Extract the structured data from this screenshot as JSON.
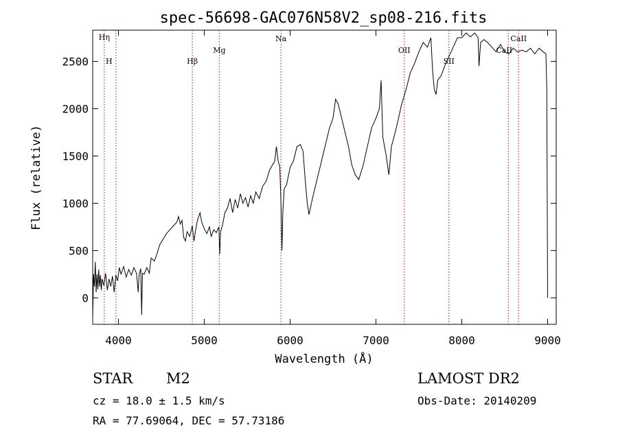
{
  "chart_data": {
    "type": "line",
    "title": "spec-56698-GAC076N58V2_sp08-216.fits",
    "xlabel": "Wavelength (Å)",
    "ylabel": "Flux (relative)",
    "xlim": [
      3700,
      9100
    ],
    "ylim": [
      -280,
      2830
    ],
    "xticks": [
      4000,
      5000,
      6000,
      7000,
      8000,
      9000
    ],
    "yticks": [
      0,
      500,
      1000,
      1500,
      2000,
      2500
    ],
    "series": [
      {
        "points": [
          [
            3700,
            -200
          ],
          [
            3710,
            250
          ],
          [
            3720,
            120
          ],
          [
            3730,
            380
          ],
          [
            3740,
            60
          ],
          [
            3750,
            250
          ],
          [
            3760,
            90
          ],
          [
            3770,
            300
          ],
          [
            3780,
            120
          ],
          [
            3790,
            240
          ],
          [
            3800,
            80
          ],
          [
            3810,
            200
          ],
          [
            3830,
            130
          ],
          [
            3850,
            260
          ],
          [
            3870,
            80
          ],
          [
            3890,
            200
          ],
          [
            3910,
            120
          ],
          [
            3930,
            230
          ],
          [
            3950,
            60
          ],
          [
            3970,
            240
          ],
          [
            3990,
            180
          ],
          [
            4010,
            320
          ],
          [
            4030,
            250
          ],
          [
            4060,
            330
          ],
          [
            4090,
            220
          ],
          [
            4120,
            300
          ],
          [
            4150,
            240
          ],
          [
            4180,
            320
          ],
          [
            4210,
            260
          ],
          [
            4230,
            60
          ],
          [
            4240,
            240
          ],
          [
            4260,
            310
          ],
          [
            4270,
            -180
          ],
          [
            4280,
            260
          ],
          [
            4300,
            250
          ],
          [
            4330,
            320
          ],
          [
            4360,
            260
          ],
          [
            4380,
            420
          ],
          [
            4420,
            390
          ],
          [
            4450,
            470
          ],
          [
            4480,
            560
          ],
          [
            4520,
            620
          ],
          [
            4560,
            680
          ],
          [
            4600,
            720
          ],
          [
            4640,
            760
          ],
          [
            4680,
            800
          ],
          [
            4700,
            860
          ],
          [
            4720,
            780
          ],
          [
            4740,
            820
          ],
          [
            4760,
            640
          ],
          [
            4780,
            600
          ],
          [
            4800,
            700
          ],
          [
            4830,
            650
          ],
          [
            4860,
            760
          ],
          [
            4880,
            600
          ],
          [
            4900,
            720
          ],
          [
            4920,
            820
          ],
          [
            4950,
            900
          ],
          [
            4970,
            800
          ],
          [
            5000,
            730
          ],
          [
            5030,
            680
          ],
          [
            5060,
            750
          ],
          [
            5080,
            650
          ],
          [
            5110,
            720
          ],
          [
            5140,
            690
          ],
          [
            5170,
            750
          ],
          [
            5180,
            460
          ],
          [
            5190,
            700
          ],
          [
            5210,
            760
          ],
          [
            5240,
            900
          ],
          [
            5270,
            950
          ],
          [
            5300,
            1050
          ],
          [
            5330,
            900
          ],
          [
            5360,
            1040
          ],
          [
            5390,
            950
          ],
          [
            5420,
            1100
          ],
          [
            5450,
            1000
          ],
          [
            5480,
            1060
          ],
          [
            5510,
            960
          ],
          [
            5540,
            1080
          ],
          [
            5570,
            1000
          ],
          [
            5600,
            1120
          ],
          [
            5640,
            1050
          ],
          [
            5680,
            1180
          ],
          [
            5720,
            1230
          ],
          [
            5760,
            1350
          ],
          [
            5790,
            1400
          ],
          [
            5820,
            1440
          ],
          [
            5840,
            1600
          ],
          [
            5860,
            1450
          ],
          [
            5880,
            1380
          ],
          [
            5895,
            950
          ],
          [
            5905,
            500
          ],
          [
            5915,
            900
          ],
          [
            5930,
            1150
          ],
          [
            5960,
            1200
          ],
          [
            6000,
            1380
          ],
          [
            6040,
            1450
          ],
          [
            6080,
            1600
          ],
          [
            6120,
            1620
          ],
          [
            6150,
            1550
          ],
          [
            6180,
            1200
          ],
          [
            6200,
            1000
          ],
          [
            6220,
            880
          ],
          [
            6260,
            1050
          ],
          [
            6300,
            1200
          ],
          [
            6340,
            1350
          ],
          [
            6380,
            1500
          ],
          [
            6420,
            1650
          ],
          [
            6460,
            1800
          ],
          [
            6500,
            1900
          ],
          [
            6530,
            2100
          ],
          [
            6560,
            2050
          ],
          [
            6600,
            1900
          ],
          [
            6640,
            1750
          ],
          [
            6680,
            1600
          ],
          [
            6720,
            1400
          ],
          [
            6760,
            1300
          ],
          [
            6800,
            1250
          ],
          [
            6850,
            1400
          ],
          [
            6900,
            1600
          ],
          [
            6950,
            1800
          ],
          [
            7000,
            1900
          ],
          [
            7040,
            2000
          ],
          [
            7060,
            2300
          ],
          [
            7080,
            1700
          ],
          [
            7120,
            1500
          ],
          [
            7150,
            1300
          ],
          [
            7180,
            1600
          ],
          [
            7210,
            1700
          ],
          [
            7250,
            1850
          ],
          [
            7300,
            2050
          ],
          [
            7350,
            2200
          ],
          [
            7400,
            2380
          ],
          [
            7450,
            2480
          ],
          [
            7500,
            2600
          ],
          [
            7550,
            2700
          ],
          [
            7600,
            2650
          ],
          [
            7620,
            2700
          ],
          [
            7640,
            2750
          ],
          [
            7660,
            2400
          ],
          [
            7680,
            2200
          ],
          [
            7700,
            2150
          ],
          [
            7720,
            2300
          ],
          [
            7760,
            2350
          ],
          [
            7800,
            2450
          ],
          [
            7850,
            2550
          ],
          [
            7900,
            2650
          ],
          [
            7950,
            2750
          ],
          [
            8000,
            2750
          ],
          [
            8050,
            2800
          ],
          [
            8100,
            2760
          ],
          [
            8150,
            2800
          ],
          [
            8190,
            2750
          ],
          [
            8200,
            2450
          ],
          [
            8220,
            2700
          ],
          [
            8260,
            2730
          ],
          [
            8300,
            2700
          ],
          [
            8350,
            2650
          ],
          [
            8400,
            2600
          ],
          [
            8450,
            2680
          ],
          [
            8500,
            2600
          ],
          [
            8550,
            2580
          ],
          [
            8600,
            2640
          ],
          [
            8650,
            2600
          ],
          [
            8700,
            2620
          ],
          [
            8750,
            2600
          ],
          [
            8800,
            2640
          ],
          [
            8850,
            2580
          ],
          [
            8900,
            2640
          ],
          [
            8950,
            2600
          ],
          [
            8980,
            2580
          ],
          [
            8990,
            2200
          ],
          [
            9000,
            0
          ]
        ]
      }
    ],
    "lines": [
      {
        "label": "Hη",
        "x": 3835
      },
      {
        "label": "H",
        "x": 3970
      },
      {
        "label": "Hβ",
        "x": 4861
      },
      {
        "label": "Mg",
        "x": 5175
      },
      {
        "label": "Na",
        "x": 5893
      },
      {
        "label": "OII",
        "x": 7330
      },
      {
        "label": "SII",
        "x": 7850
      },
      {
        "label": "CaII",
        "x": 8542
      },
      {
        "label": "CaII",
        "x": 8662
      }
    ],
    "line_color": "#cc0000",
    "axis_color": "#000000"
  },
  "info": {
    "class": "STAR",
    "subclass": "M2",
    "survey": "LAMOST DR2",
    "cz": "cz = 18.0 ± 1.5 km/s",
    "obs_date": "Obs-Date: 20140209",
    "coords": "RA =  77.69064, DEC =  57.73186"
  }
}
